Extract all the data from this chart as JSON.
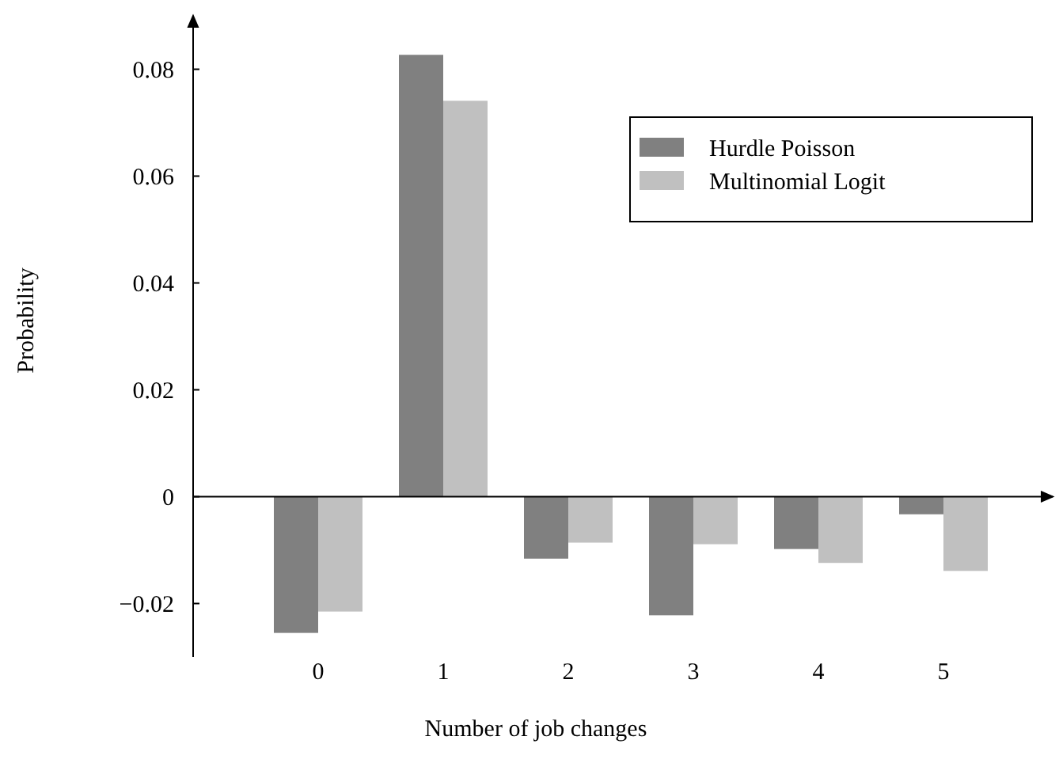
{
  "chart_data": {
    "type": "bar",
    "xlabel": "Number of job changes",
    "ylabel": "Probability",
    "categories": [
      "0",
      "1",
      "2",
      "3",
      "4",
      "5"
    ],
    "series": [
      {
        "name": "Hurdle Poisson",
        "color": "#808080",
        "values": [
          -0.0255,
          0.0827,
          -0.0116,
          -0.0222,
          -0.0098,
          -0.0033
        ]
      },
      {
        "name": "Multinomial Logit",
        "color": "#c0c0c0",
        "values": [
          -0.0215,
          0.0741,
          -0.0086,
          -0.0089,
          -0.0124,
          -0.0139
        ]
      }
    ],
    "ylim": [
      -0.03,
      0.09
    ],
    "yticks": [
      {
        "value": -0.02,
        "label": "−0.02"
      },
      0,
      0.02,
      0.04,
      0.06,
      0.08
    ],
    "legend": "top right"
  }
}
